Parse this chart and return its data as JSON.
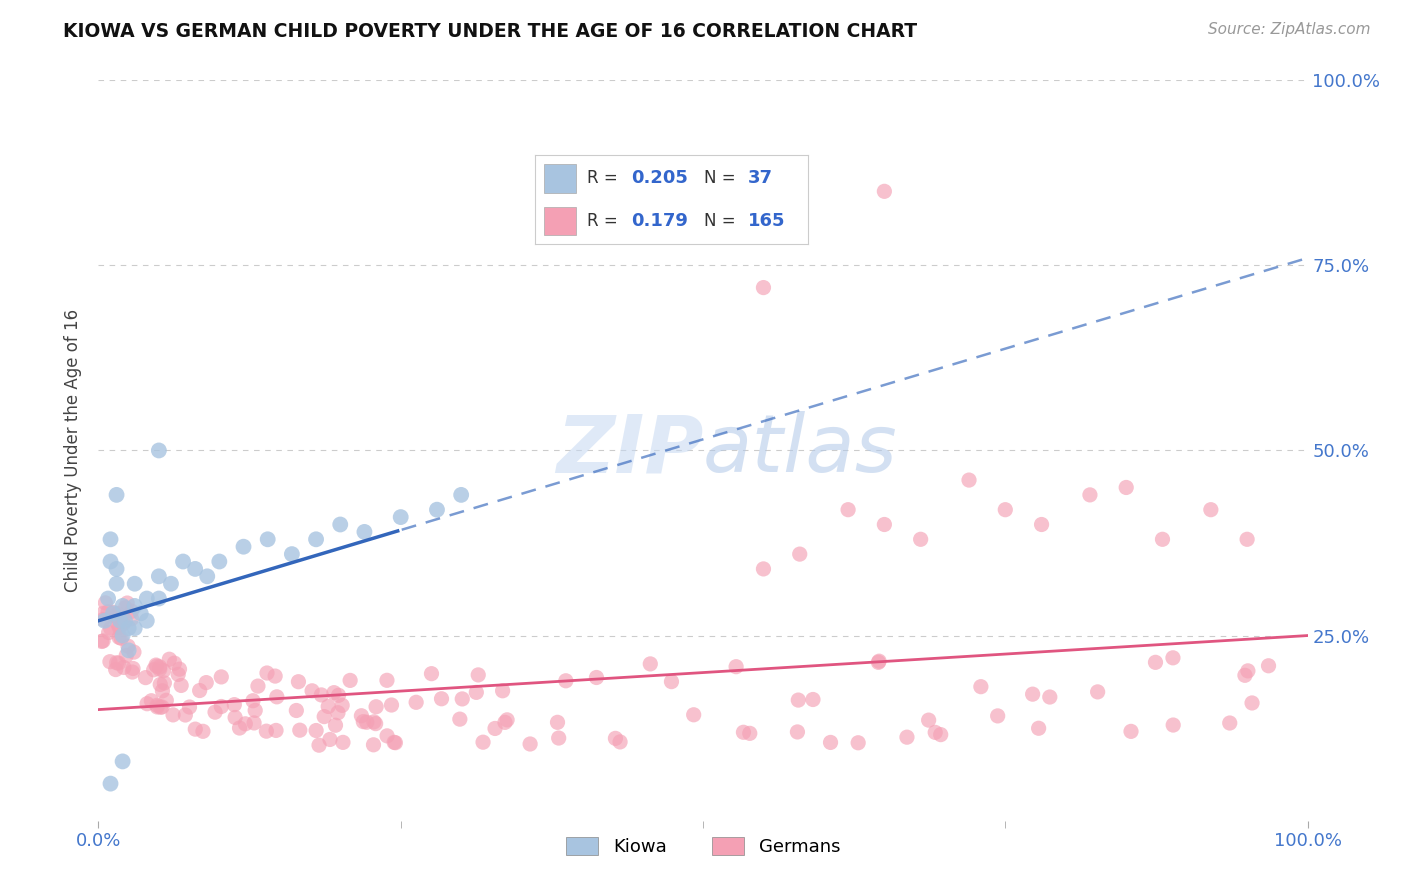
{
  "title": "KIOWA VS GERMAN CHILD POVERTY UNDER THE AGE OF 16 CORRELATION CHART",
  "source_text": "Source: ZipAtlas.com",
  "ylabel": "Child Poverty Under the Age of 16",
  "xlim": [
    0,
    1
  ],
  "ylim": [
    0,
    1
  ],
  "x_tick_labels": [
    "0.0%",
    "100.0%"
  ],
  "y_tick_labels": [
    "25.0%",
    "50.0%",
    "75.0%",
    "100.0%"
  ],
  "kiowa_color": "#a8c4e0",
  "german_color": "#f4a0b4",
  "trend_blue": "#3366bb",
  "trend_pink": "#e05580",
  "bg_color": "#ffffff",
  "grid_color": "#cccccc",
  "legend_R1": "0.205",
  "legend_N1": "37",
  "legend_R2": "0.179",
  "legend_N2": "165",
  "watermark_color": "#c8d8f0",
  "watermark_text": "ZIPatlas"
}
